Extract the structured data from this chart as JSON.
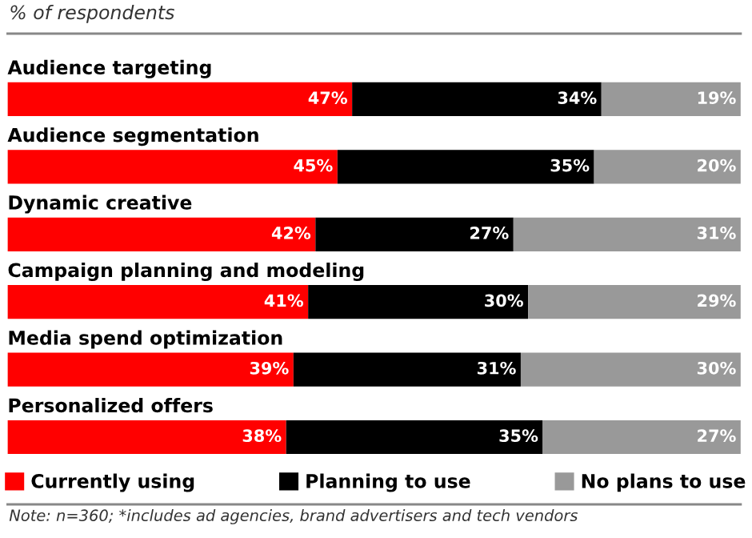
{
  "chart_data": {
    "type": "bar",
    "orientation": "horizontal",
    "stacked": true,
    "subtitle": "% of respondents",
    "categories": [
      "Audience targeting",
      "Audience segmentation",
      "Dynamic creative",
      "Campaign planning and modeling",
      "Media spend optimization",
      "Personalized offers"
    ],
    "series": [
      {
        "name": "Currently using",
        "color": "#ff0000",
        "values": [
          47,
          45,
          42,
          41,
          39,
          38
        ],
        "value_labels": [
          "47%",
          "45%",
          "42%",
          "41%",
          "39%",
          "38%"
        ]
      },
      {
        "name": "Planning to use",
        "color": "#000000",
        "values": [
          34,
          35,
          27,
          30,
          31,
          35
        ],
        "value_labels": [
          "34%",
          "35%",
          "27%",
          "30%",
          "31%",
          "35%"
        ]
      },
      {
        "name": "No plans to use",
        "color": "#999999",
        "values": [
          19,
          20,
          31,
          29,
          30,
          27
        ],
        "value_labels": [
          "19%",
          "20%",
          "31%",
          "29%",
          "30%",
          "27%"
        ]
      }
    ],
    "xlim": [
      0,
      100
    ],
    "tick_labels": false,
    "grid": false,
    "legend": "bottom",
    "annotations": [
      "Note: n=360; *includes ad agencies, brand advertisers and tech vendors"
    ]
  }
}
